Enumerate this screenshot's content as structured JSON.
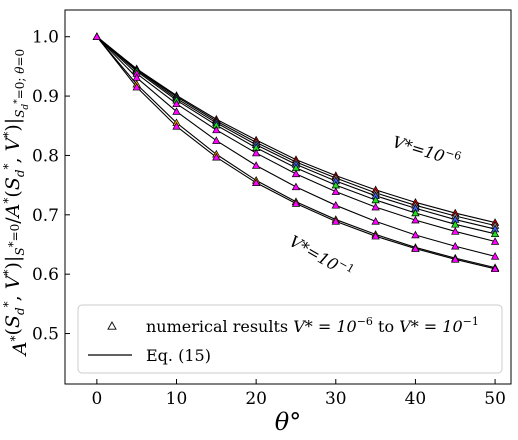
{
  "chart_data": {
    "type": "scatter",
    "xlabel": "θ°",
    "ylabel": "A*(S_d*, V*)|S*=0 / A*(S_d*, V*)|S_d*=0; θ=0",
    "xlim": [
      -4,
      52
    ],
    "ylim": [
      0.415,
      1.045
    ],
    "xticks": [
      0,
      10,
      20,
      30,
      40,
      50
    ],
    "yticks": [
      0.5,
      0.6,
      0.7,
      0.8,
      0.9,
      1.0
    ],
    "xtick_labels": [
      "0",
      "10",
      "20",
      "30",
      "40",
      "50"
    ],
    "ytick_labels": [
      "0.5",
      "0.6",
      "0.7",
      "0.8",
      "0.9",
      "1.0"
    ],
    "grid": false,
    "legend_position": "bottom",
    "x": [
      0,
      5,
      10,
      15,
      20,
      25,
      30,
      35,
      40,
      45,
      50
    ],
    "series": [
      {
        "color": "#ff0000",
        "values": [
          1.0,
          0.946,
          0.901,
          0.861,
          0.826,
          0.793,
          0.766,
          0.742,
          0.721,
          0.703,
          0.687
        ]
      },
      {
        "color": "#888888",
        "values": [
          1.0,
          0.945,
          0.899,
          0.858,
          0.822,
          0.789,
          0.762,
          0.737,
          0.716,
          0.698,
          0.682
        ]
      },
      {
        "color": "#4466ff",
        "values": [
          1.0,
          0.944,
          0.896,
          0.855,
          0.818,
          0.785,
          0.757,
          0.732,
          0.711,
          0.692,
          0.676
        ]
      },
      {
        "color": "#22dd22",
        "values": [
          1.0,
          0.942,
          0.893,
          0.851,
          0.813,
          0.779,
          0.75,
          0.725,
          0.703,
          0.684,
          0.668
        ]
      },
      {
        "color": "#ff00ff",
        "values": [
          1.0,
          0.938,
          0.887,
          0.843,
          0.804,
          0.769,
          0.739,
          0.713,
          0.691,
          0.672,
          0.655
        ]
      },
      {
        "color": "#ff00ff",
        "values": [
          1.0,
          0.931,
          0.874,
          0.825,
          0.783,
          0.747,
          0.716,
          0.689,
          0.666,
          0.647,
          0.63
        ]
      },
      {
        "color": "#ffa500",
        "values": [
          1.0,
          0.92,
          0.855,
          0.802,
          0.758,
          0.722,
          0.692,
          0.667,
          0.645,
          0.627,
          0.611
        ]
      },
      {
        "color": "#ff00ff",
        "values": [
          1.0,
          0.915,
          0.849,
          0.797,
          0.754,
          0.719,
          0.689,
          0.664,
          0.643,
          0.625,
          0.609
        ]
      }
    ],
    "marker": "triangle",
    "curves_color": "#000000",
    "annotations": [
      {
        "text_base": "V*=10",
        "exponent": "−6",
        "at": [
          37,
          0.815
        ],
        "rotation": 17
      },
      {
        "text_base": "V*=10",
        "exponent": "−1",
        "at": [
          24,
          0.65
        ],
        "rotation": 30
      }
    ],
    "legend": [
      {
        "label_main": "numerical results ",
        "label_expr": "V* = 10",
        "exp1": "−6",
        "label_mid": " to ",
        "label_expr2": "V* = 10",
        "exp2": "−1",
        "marker": "triangle"
      },
      {
        "label_main": "Eq. (15)",
        "marker": "line"
      }
    ]
  }
}
